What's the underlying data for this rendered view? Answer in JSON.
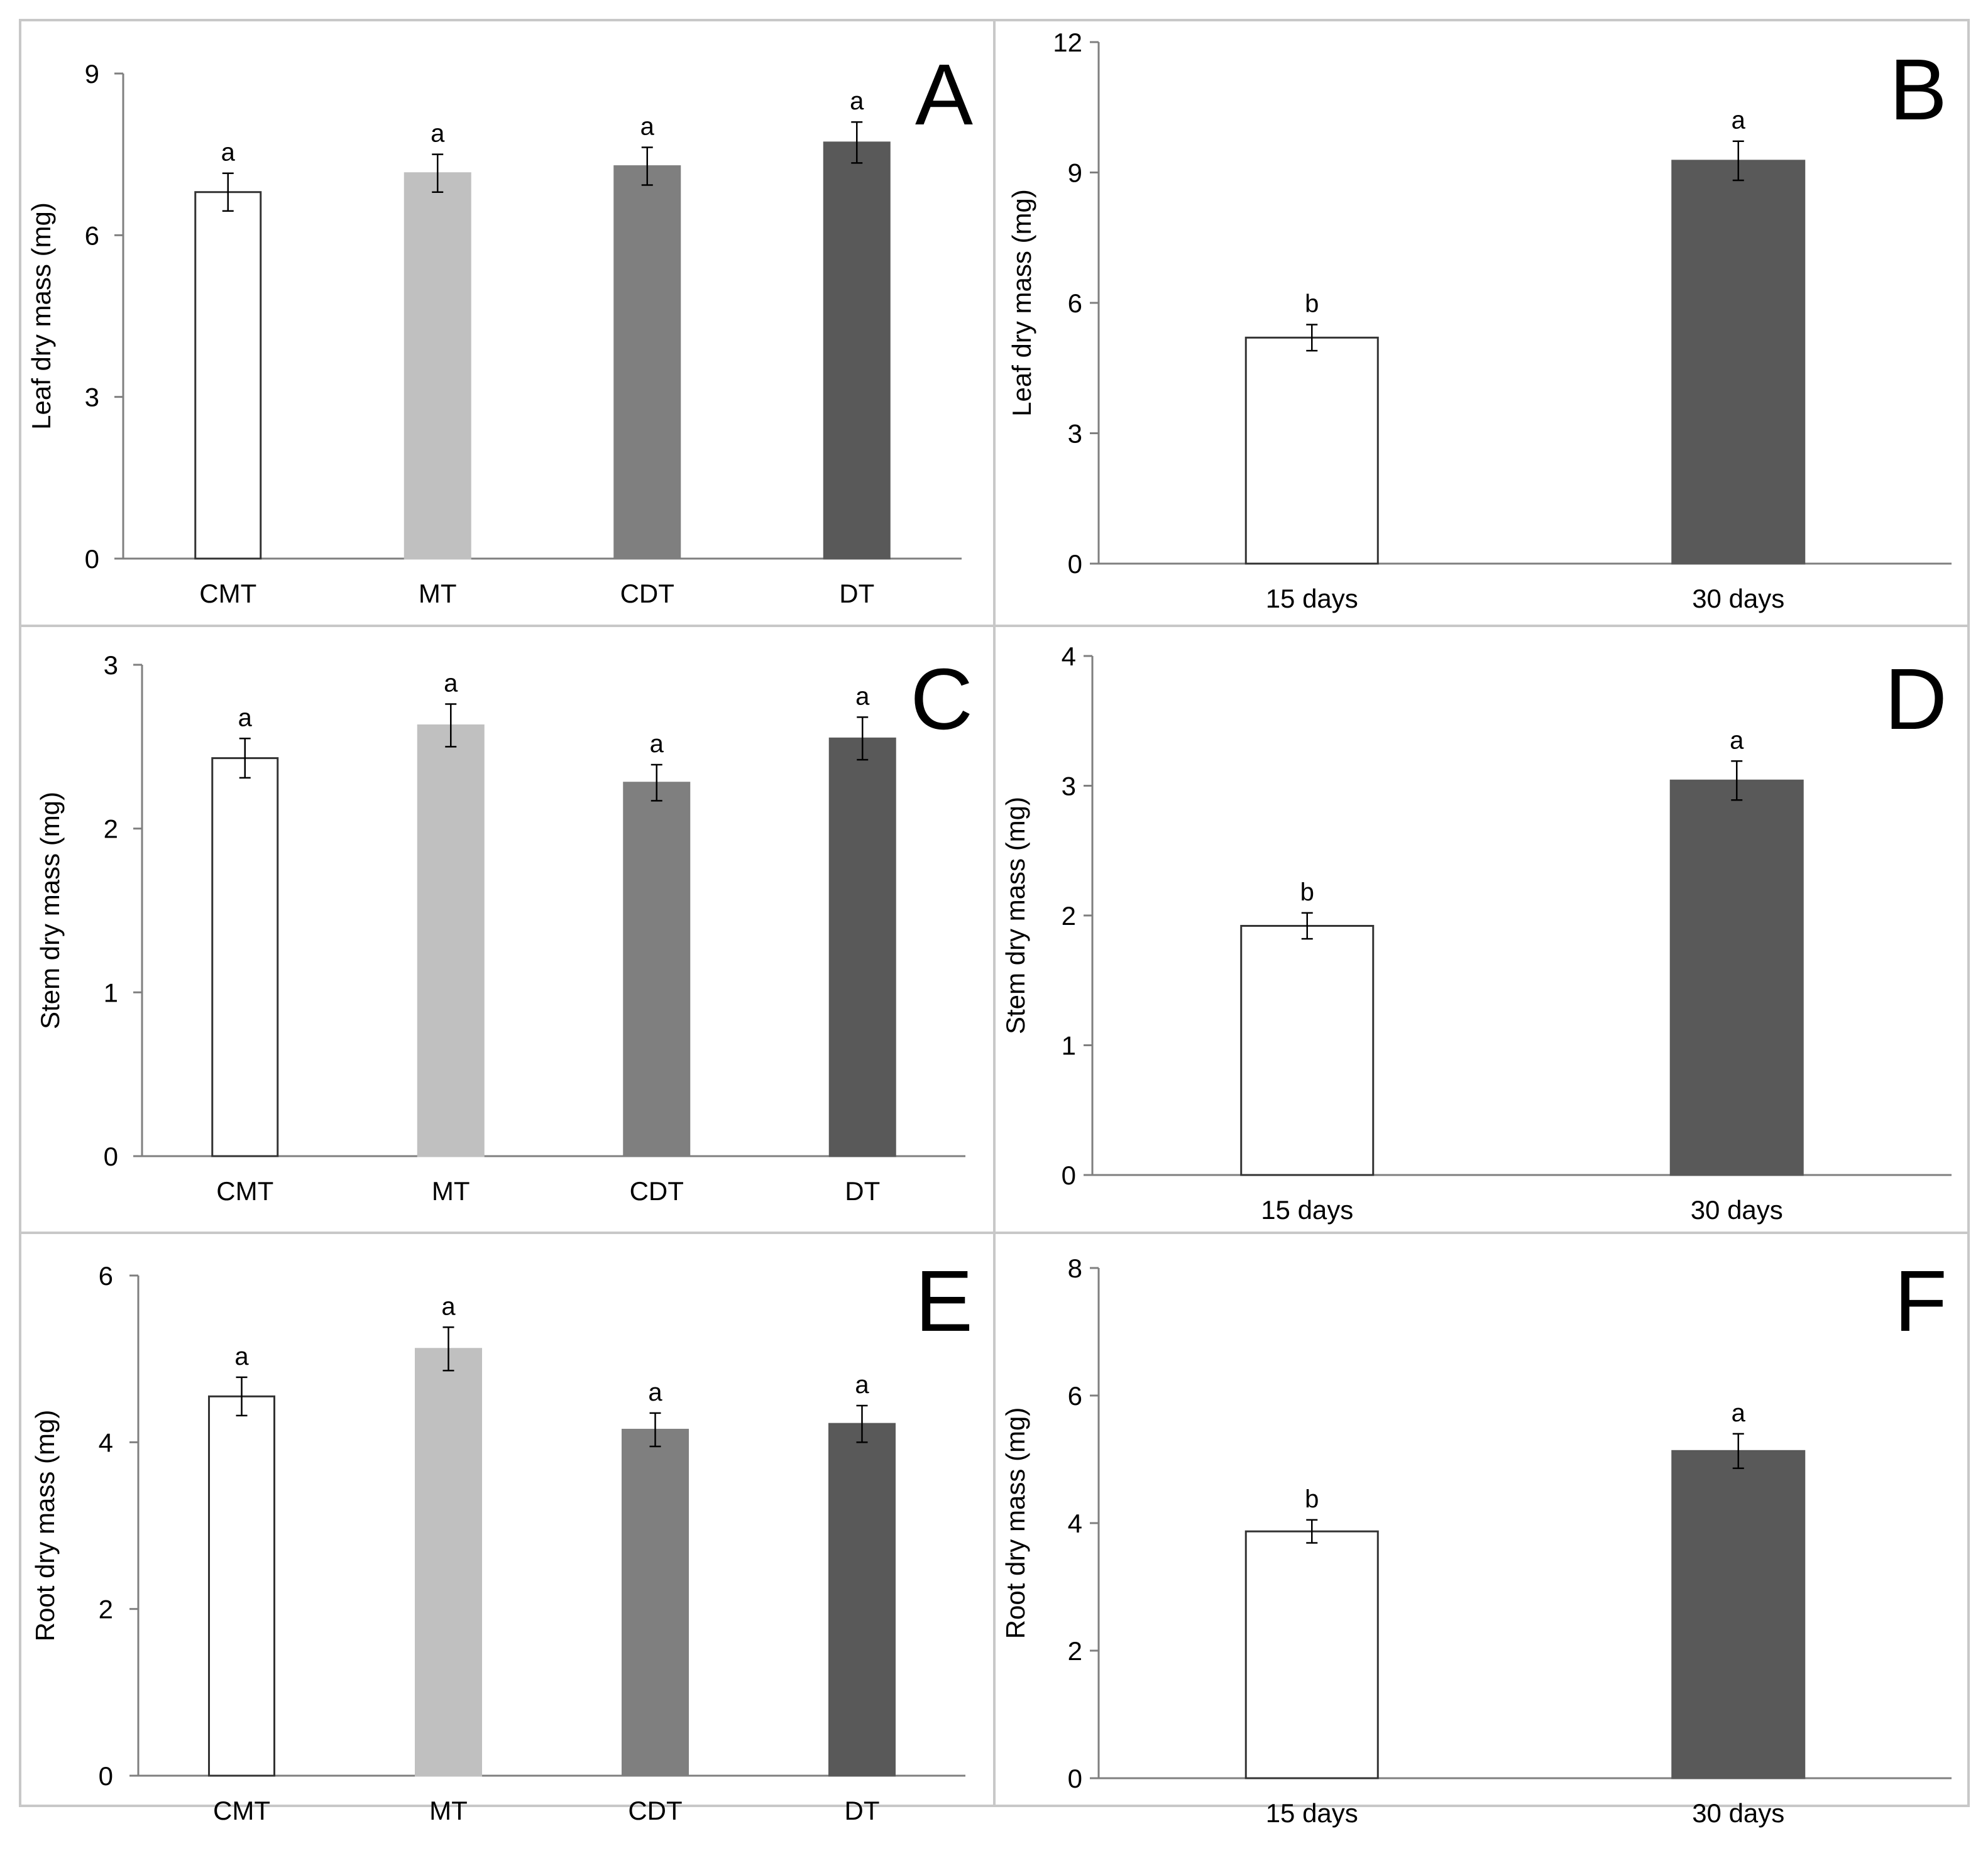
{
  "figure": {
    "colors": {
      "frame": "#c8c8c8",
      "axis": "#7f7f7f",
      "errorbar": "#000000",
      "white_bar_border": "#333333"
    },
    "panels": [
      "A",
      "B",
      "C",
      "D",
      "E",
      "F"
    ]
  },
  "chart_data": [
    {
      "type": "bar",
      "panel": "A",
      "categories": [
        "CMT",
        "MT",
        "CDT",
        "DT"
      ],
      "values": [
        6.8,
        7.15,
        7.28,
        7.72
      ],
      "errors": [
        0.35,
        0.35,
        0.35,
        0.38
      ],
      "significance": [
        "a",
        "a",
        "a",
        "a"
      ],
      "colors": [
        "#ffffff",
        "#c0c0c0",
        "#7f7f7f",
        "#595959"
      ],
      "ylabel": "Leaf dry mass  (mg)",
      "ylim": [
        0,
        9
      ],
      "yticks": [
        0,
        3,
        6,
        9
      ]
    },
    {
      "type": "bar",
      "panel": "B",
      "categories": [
        "15 days",
        "30 days"
      ],
      "values": [
        5.2,
        9.27
      ],
      "errors": [
        0.3,
        0.45
      ],
      "significance": [
        "b",
        "a"
      ],
      "colors": [
        "#ffffff",
        "#595959"
      ],
      "ylabel": "Leaf dry mass  (mg)",
      "ylim": [
        0,
        12
      ],
      "yticks": [
        0,
        3,
        6,
        9,
        12
      ]
    },
    {
      "type": "bar",
      "panel": "C",
      "categories": [
        "CMT",
        "MT",
        "CDT",
        "DT"
      ],
      "values": [
        2.43,
        2.63,
        2.28,
        2.55
      ],
      "errors": [
        0.12,
        0.13,
        0.11,
        0.13
      ],
      "significance": [
        "a",
        "a",
        "a",
        "a"
      ],
      "colors": [
        "#ffffff",
        "#c0c0c0",
        "#7f7f7f",
        "#595959"
      ],
      "ylabel": "Stem dry mass  (mg)",
      "ylim": [
        0,
        3
      ],
      "yticks": [
        0,
        1,
        2,
        3
      ]
    },
    {
      "type": "bar",
      "panel": "D",
      "categories": [
        "15 days",
        "30 days"
      ],
      "values": [
        1.92,
        3.04
      ],
      "errors": [
        0.1,
        0.15
      ],
      "significance": [
        "b",
        "a"
      ],
      "colors": [
        "#ffffff",
        "#595959"
      ],
      "ylabel": "Stem dry mass  (mg)",
      "ylim": [
        0,
        4
      ],
      "yticks": [
        0,
        1,
        2,
        3,
        4
      ]
    },
    {
      "type": "bar",
      "panel": "E",
      "categories": [
        "CMT",
        "MT",
        "CDT",
        "DT"
      ],
      "values": [
        4.55,
        5.12,
        4.15,
        4.22
      ],
      "errors": [
        0.23,
        0.26,
        0.2,
        0.22
      ],
      "significance": [
        "a",
        "a",
        "a",
        "a"
      ],
      "colors": [
        "#ffffff",
        "#c0c0c0",
        "#7f7f7f",
        "#595959"
      ],
      "ylabel": "Root dry mass  (mg)",
      "ylim": [
        0,
        6
      ],
      "yticks": [
        0,
        2,
        4,
        6
      ]
    },
    {
      "type": "bar",
      "panel": "F",
      "categories": [
        "15 days",
        "30 days"
      ],
      "values": [
        3.87,
        5.13
      ],
      "errors": [
        0.18,
        0.27
      ],
      "significance": [
        "b",
        "a"
      ],
      "colors": [
        "#ffffff",
        "#595959"
      ],
      "ylabel": "Root dry mass  (mg)",
      "ylim": [
        0,
        8
      ],
      "yticks": [
        0,
        2,
        4,
        6,
        8
      ]
    }
  ]
}
